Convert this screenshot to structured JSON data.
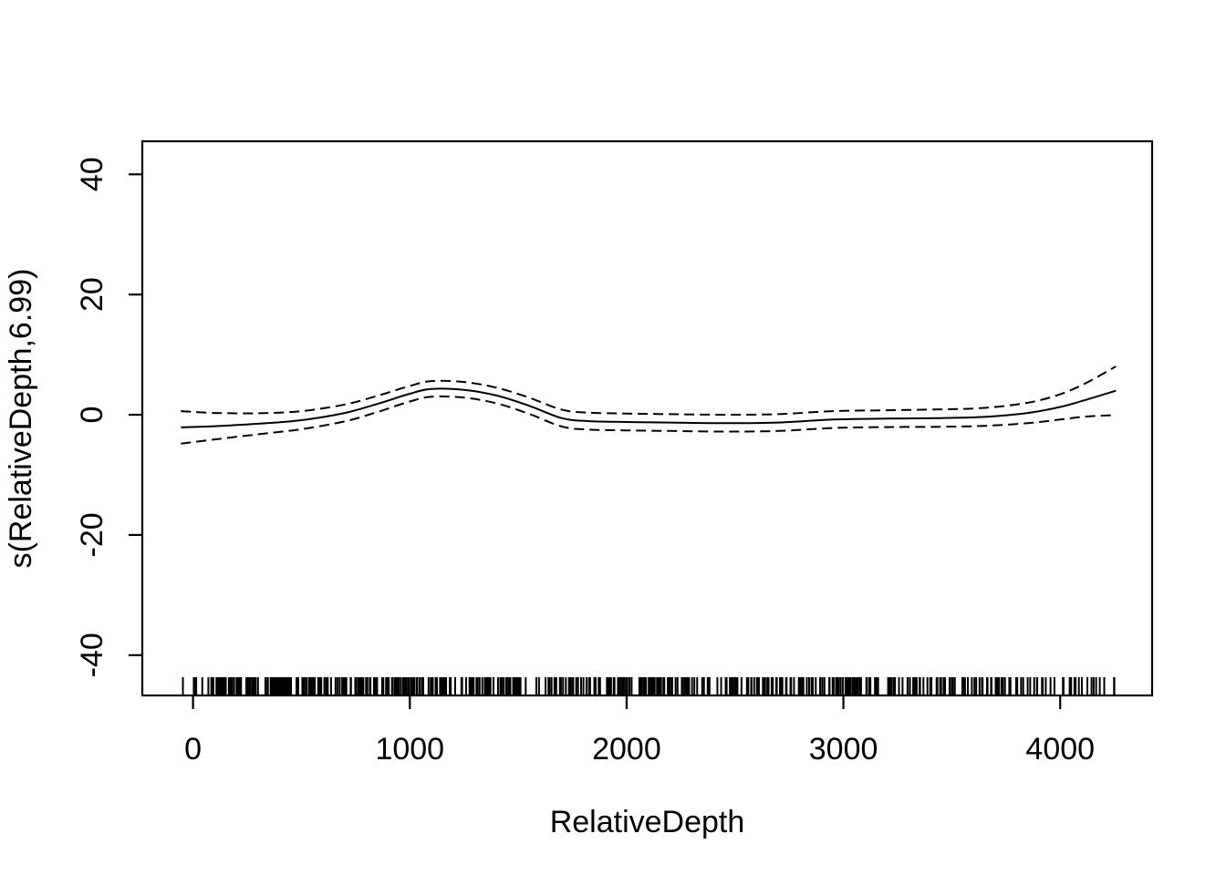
{
  "figure": {
    "description": "GAM smooth term plot (mgcv-style) of RelativeDepth effect with 95% confidence bands and data rug"
  },
  "chart_data": {
    "type": "line",
    "title": "",
    "xlabel": "RelativeDepth",
    "ylabel": "s(RelativeDepth,6.99)",
    "xlim": [
      -234,
      4424
    ],
    "ylim": [
      -46.7,
      45.5
    ],
    "x_ticks": [
      0,
      1000,
      2000,
      3000,
      4000
    ],
    "x_tick_labels": [
      "0",
      "1000",
      "2000",
      "3000",
      "4000"
    ],
    "y_ticks": [
      -40,
      -20,
      0,
      20,
      40
    ],
    "y_tick_labels": [
      "-40",
      "-20",
      "0",
      "20",
      "40"
    ],
    "grid": false,
    "legend_position": "none",
    "colors": {
      "background": "#ffffff",
      "foreground": "#000000"
    },
    "x": [
      -56,
      100,
      300,
      500,
      700,
      850,
      1000,
      1100,
      1250,
      1400,
      1550,
      1700,
      1820,
      2000,
      2200,
      2450,
      2700,
      2950,
      3200,
      3450,
      3650,
      3850,
      4000,
      4120,
      4257
    ],
    "series": [
      {
        "name": "smooth-fit",
        "label": "smooth estimate",
        "style": "solid",
        "values": [
          -2.1,
          -1.9,
          -1.5,
          -0.9,
          0.3,
          1.8,
          3.5,
          4.3,
          4.15,
          3.2,
          1.5,
          -0.55,
          -1.05,
          -1.2,
          -1.3,
          -1.4,
          -1.3,
          -0.8,
          -0.65,
          -0.55,
          -0.35,
          0.3,
          1.3,
          2.5,
          4.0
        ]
      },
      {
        "name": "upper-ci",
        "label": "upper 95% confidence band",
        "style": "dashed",
        "values": [
          0.6,
          0.3,
          0.25,
          0.6,
          1.7,
          3.15,
          4.8,
          5.6,
          5.45,
          4.5,
          2.85,
          0.85,
          0.35,
          0.2,
          0.1,
          0.0,
          0.1,
          0.6,
          0.75,
          0.9,
          1.15,
          2.0,
          3.4,
          5.3,
          8.05
        ]
      },
      {
        "name": "lower-ci",
        "label": "lower 95% confidence band",
        "style": "dashed",
        "values": [
          -4.8,
          -4.1,
          -3.25,
          -2.4,
          -1.1,
          0.45,
          2.2,
          3.0,
          2.85,
          1.9,
          0.15,
          -1.95,
          -2.45,
          -2.6,
          -2.7,
          -2.8,
          -2.7,
          -2.2,
          -2.05,
          -2.0,
          -1.85,
          -1.4,
          -0.8,
          -0.3,
          -0.05
        ]
      }
    ],
    "rug": {
      "seed": 11,
      "mark_height": 19,
      "bands": [
        {
          "from": -56,
          "to": 60,
          "n": 9
        },
        {
          "from": 60,
          "to": 250,
          "n": 34
        },
        {
          "from": 250,
          "to": 560,
          "n": 64
        },
        {
          "from": 560,
          "to": 900,
          "n": 50
        },
        {
          "from": 900,
          "to": 1250,
          "n": 52
        },
        {
          "from": 1250,
          "to": 1700,
          "n": 56
        },
        {
          "from": 1700,
          "to": 2100,
          "n": 62
        },
        {
          "from": 2100,
          "to": 2550,
          "n": 56
        },
        {
          "from": 2550,
          "to": 2950,
          "n": 52
        },
        {
          "from": 2950,
          "to": 3350,
          "n": 58
        },
        {
          "from": 3350,
          "to": 3700,
          "n": 40
        },
        {
          "from": 3700,
          "to": 3950,
          "n": 24
        },
        {
          "from": 3950,
          "to": 4257,
          "n": 18
        }
      ]
    }
  }
}
